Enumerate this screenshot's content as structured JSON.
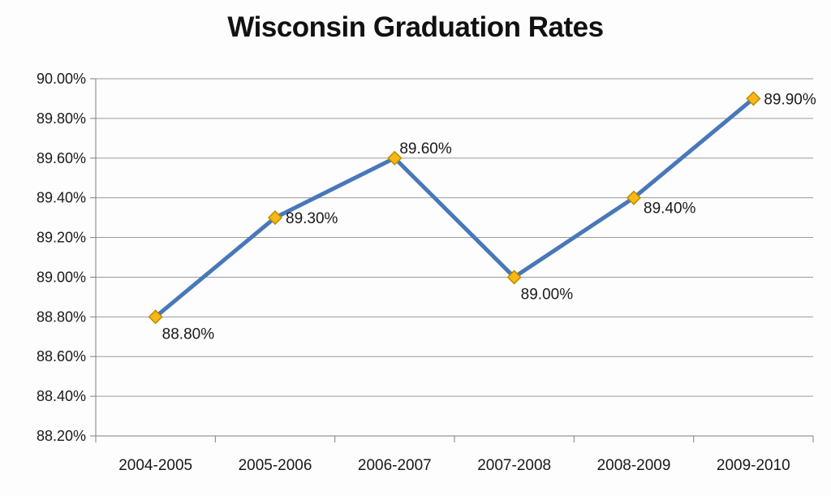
{
  "title": "Wisconsin Graduation Rates",
  "chart_data": {
    "type": "line",
    "title": "Wisconsin Graduation Rates",
    "categories": [
      "2004-2005",
      "2005-2006",
      "2006-2007",
      "2007-2008",
      "2008-2009",
      "2009-2010"
    ],
    "values": [
      88.8,
      89.3,
      89.6,
      89.0,
      89.4,
      89.9
    ],
    "point_labels": [
      "88.80%",
      "89.30%",
      "89.60%",
      "89.00%",
      "89.40%",
      "89.90%"
    ],
    "point_label_positions": [
      "below",
      "right",
      "above",
      "below",
      "below-right",
      "right"
    ],
    "ytick_labels": [
      "90.00%",
      "89.80%",
      "89.60%",
      "89.40%",
      "89.20%",
      "89.00%",
      "88.80%",
      "88.60%",
      "88.40%",
      "88.20%"
    ],
    "ylim": [
      88.2,
      90.0
    ],
    "xlabel": "",
    "ylabel": "",
    "grid": true,
    "legend": "none",
    "colors": {
      "line": "#4878B8",
      "marker_fill": "#FCB714",
      "marker_border": "#B98D00",
      "gridline": "#9B9B9B",
      "axis": "#7F7F7F",
      "tick_text": "#1A1A1A",
      "title_text": "#111111",
      "background": "#FDFDFD"
    }
  }
}
